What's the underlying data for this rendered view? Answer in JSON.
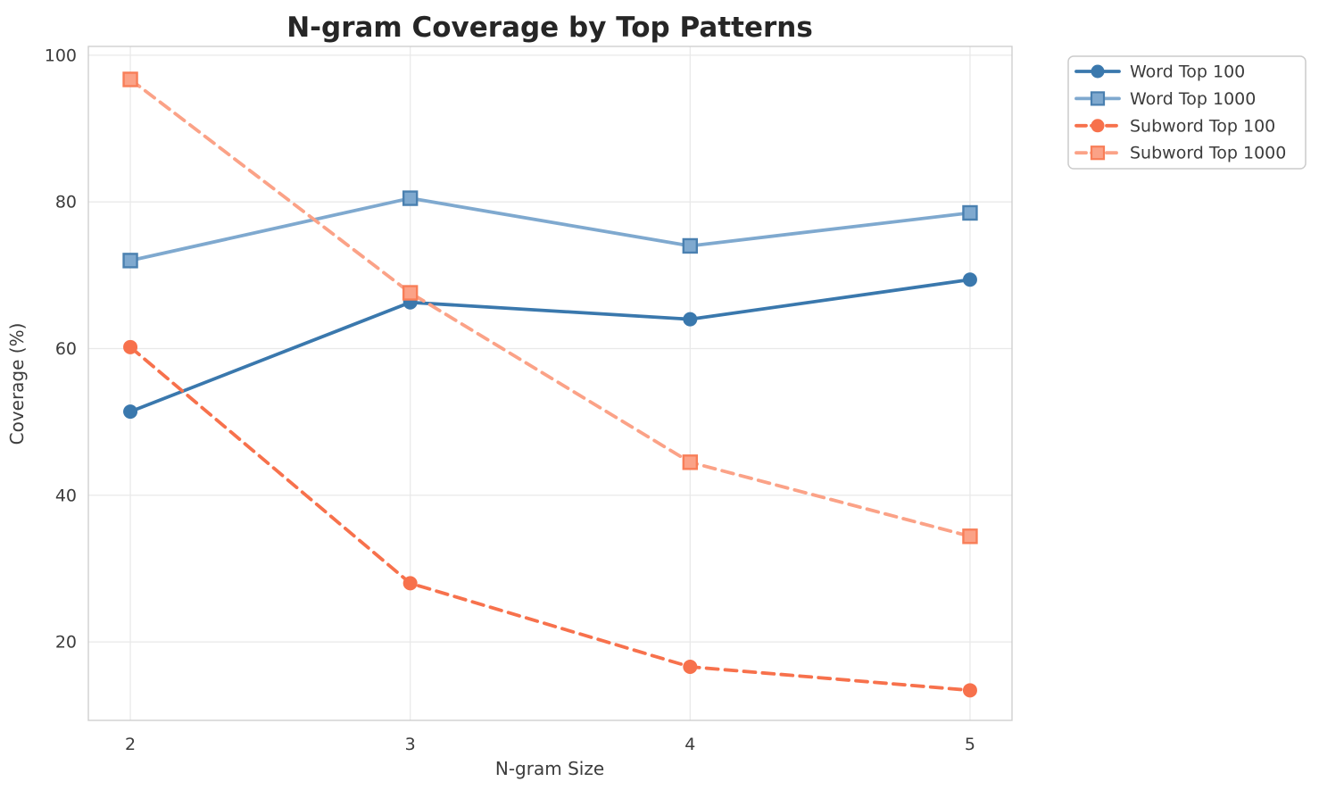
{
  "chart": {
    "background_color": "#ffffff",
    "grid_color": "#e9e9e9",
    "spine_color": "#cfcfcf",
    "title_color": "#262626",
    "label_color": "#3c3c3c",
    "legend_border_color": "#cccccc",
    "legend_background": "#ffffff"
  },
  "chart_data": {
    "type": "line",
    "title": "N-gram Coverage by Top Patterns",
    "xlabel": "N-gram Size",
    "ylabel": "Coverage (%)",
    "x": [
      2,
      3,
      4,
      5
    ],
    "xticks": [
      "2",
      "3",
      "4",
      "5"
    ],
    "yticks": [
      20,
      40,
      60,
      80,
      100
    ],
    "xlim": [
      1.85,
      5.15
    ],
    "ylim": [
      9.3,
      101.2
    ],
    "grid": true,
    "legend_position": "outside-upper-right",
    "series": [
      {
        "name": "Word Top 100",
        "values": [
          51.4,
          66.3,
          64.0,
          69.4
        ],
        "color": "#3a78ad",
        "line_style": "solid",
        "marker": "circle"
      },
      {
        "name": "Word Top 1000",
        "values": [
          72.0,
          80.5,
          74.0,
          78.5
        ],
        "color": "#7fa9cf",
        "marker_edge": "#4a80b0",
        "line_style": "solid",
        "marker": "square"
      },
      {
        "name": "Subword Top 100",
        "values": [
          60.2,
          28.0,
          16.6,
          13.4
        ],
        "color": "#f7714c",
        "line_style": "dashed",
        "marker": "circle"
      },
      {
        "name": "Subword Top 1000",
        "values": [
          96.7,
          67.6,
          44.5,
          34.4
        ],
        "color": "#fba287",
        "marker_edge": "#f87e58",
        "line_style": "dashed",
        "marker": "square"
      }
    ]
  }
}
